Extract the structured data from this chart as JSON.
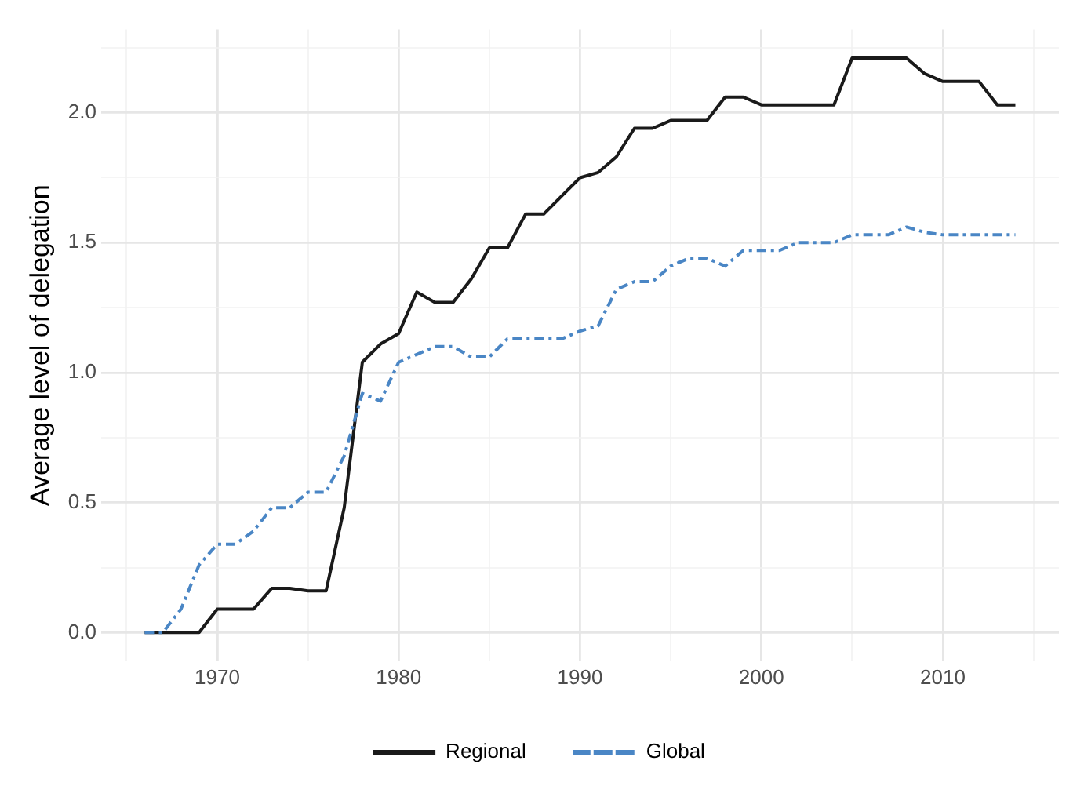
{
  "chart_data": {
    "type": "line",
    "ylabel": "Average level of delegation",
    "x": [
      1966,
      1967,
      1968,
      1969,
      1970,
      1971,
      1972,
      1973,
      1974,
      1975,
      1976,
      1977,
      1978,
      1979,
      1980,
      1981,
      1982,
      1983,
      1984,
      1985,
      1986,
      1987,
      1988,
      1989,
      1990,
      1991,
      1992,
      1993,
      1994,
      1995,
      1996,
      1997,
      1998,
      1999,
      2000,
      2001,
      2002,
      2003,
      2004,
      2005,
      2006,
      2007,
      2008,
      2009,
      2010,
      2011,
      2012,
      2013,
      2014
    ],
    "series": [
      {
        "name": "Regional",
        "color": "#1a1a1a",
        "line_style": "solid",
        "values": [
          0,
          0,
          0,
          0,
          0.09,
          0.09,
          0.09,
          0.17,
          0.17,
          0.16,
          0.16,
          0.48,
          1.04,
          1.11,
          1.15,
          1.31,
          1.27,
          1.27,
          1.36,
          1.48,
          1.48,
          1.61,
          1.61,
          1.68,
          1.75,
          1.77,
          1.83,
          1.94,
          1.94,
          1.97,
          1.97,
          1.97,
          2.06,
          2.06,
          2.03,
          2.03,
          2.03,
          2.03,
          2.03,
          2.21,
          2.21,
          2.21,
          2.21,
          2.15,
          2.12,
          2.12,
          2.12,
          2.03,
          2.03
        ]
      },
      {
        "name": "Global",
        "color": "#4a86c5",
        "line_style": "dashed",
        "values": [
          0,
          0,
          0.09,
          0.26,
          0.34,
          0.34,
          0.39,
          0.48,
          0.48,
          0.54,
          0.54,
          0.68,
          0.92,
          0.89,
          1.04,
          1.07,
          1.1,
          1.1,
          1.06,
          1.06,
          1.13,
          1.13,
          1.13,
          1.13,
          1.16,
          1.18,
          1.32,
          1.35,
          1.35,
          1.41,
          1.44,
          1.44,
          1.41,
          1.47,
          1.47,
          1.47,
          1.5,
          1.5,
          1.5,
          1.53,
          1.53,
          1.53,
          1.56,
          1.54,
          1.53,
          1.53,
          1.53,
          1.53,
          1.53
        ]
      }
    ],
    "xlim": [
      1963.6,
      2016.4
    ],
    "xticks": [
      {
        "value": 1965,
        "label": null
      },
      1970,
      {
        "value": 1975,
        "label": null
      },
      1980,
      {
        "value": 1985,
        "label": null
      },
      1990,
      {
        "value": 1995,
        "label": null
      },
      2000,
      {
        "value": 2005,
        "label": null
      },
      2010,
      {
        "value": 2015,
        "label": null
      }
    ],
    "ylim": [
      -0.11,
      2.32
    ],
    "yticks": [
      {
        "value": 0,
        "label": "0.0"
      },
      {
        "value": 0.25,
        "label": null
      },
      {
        "value": 0.5,
        "label": "0.5"
      },
      {
        "value": 0.75,
        "label": null
      },
      {
        "value": 1,
        "label": "1.0"
      },
      {
        "value": 1.25,
        "label": null
      },
      {
        "value": 1.5,
        "label": "1.5"
      },
      {
        "value": 1.75,
        "label": null
      },
      {
        "value": 2,
        "label": "2.0"
      },
      {
        "value": 2.25,
        "label": null
      }
    ],
    "grid": true,
    "legend": "bottom",
    "marker": "none"
  }
}
